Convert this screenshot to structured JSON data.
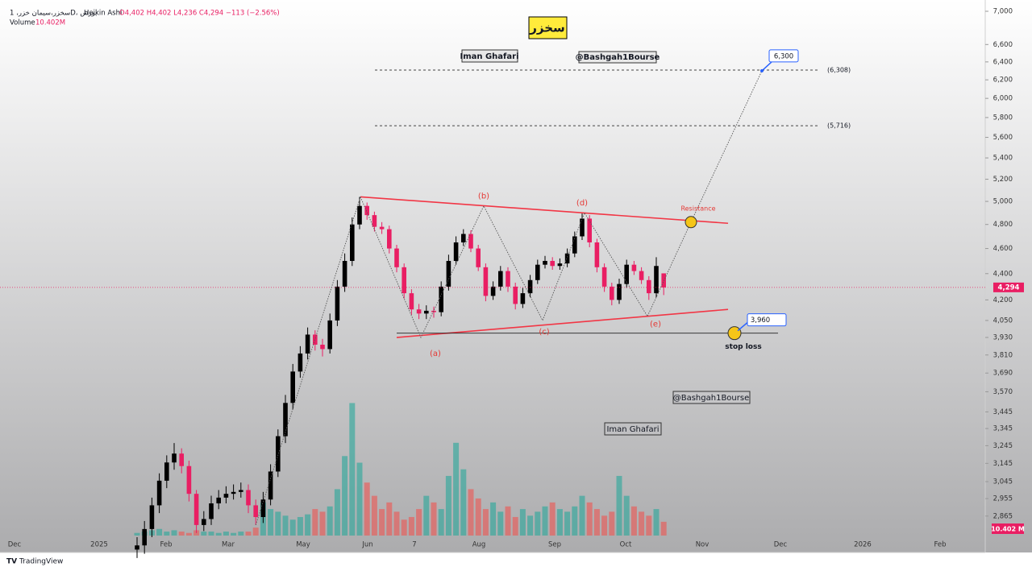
{
  "header": {
    "symbol": "سخزر،سیمان خزر، 1D، بورس",
    "chart_style": "Heikin Ashi",
    "ohlc": "O4,402 H4,402 L4,236 C4,294 −113 (−2.56%)",
    "volume_label": "Volume",
    "volume_value": "10.402M",
    "badge": "سخزر",
    "watermarks": [
      "Iman Ghafari",
      "@Bashgah1Bourse",
      "@Bashgah1Bourse",
      "Iman Ghafari"
    ],
    "brand": "TradingView"
  },
  "chart_data": {
    "type": "candlestick",
    "log_scale": true,
    "up_color": "#000000",
    "down_color": "#e91e63",
    "volume_up_color": "#26a69a",
    "volume_down_color": "#ef5350",
    "ylim": [
      2690,
      7141
    ],
    "yticks": [
      {
        "value": 7000,
        "label": "7,000"
      },
      {
        "value": 6600,
        "label": "6,600"
      },
      {
        "value": 6400,
        "label": "6,400"
      },
      {
        "value": 6200,
        "label": "6,200"
      },
      {
        "value": 6000,
        "label": "6,000"
      },
      {
        "value": 5800,
        "label": "5,800"
      },
      {
        "value": 5600,
        "label": "5,600"
      },
      {
        "value": 5400,
        "label": "5,400"
      },
      {
        "value": 5200,
        "label": "5,200"
      },
      {
        "value": 5000,
        "label": "5,000"
      },
      {
        "value": 4800,
        "label": "4,800"
      },
      {
        "value": 4600,
        "label": "4,600"
      },
      {
        "value": 4400,
        "label": "4,400"
      },
      {
        "value": 4200,
        "label": "4,200"
      },
      {
        "value": 4050,
        "label": "4,050"
      },
      {
        "value": 3930,
        "label": "3,930"
      },
      {
        "value": 3810,
        "label": "3,810"
      },
      {
        "value": 3690,
        "label": "3,690"
      },
      {
        "value": 3570,
        "label": "3,570"
      },
      {
        "value": 3445,
        "label": "3,445"
      },
      {
        "value": 3345,
        "label": "3,345"
      },
      {
        "value": 3245,
        "label": "3,245"
      },
      {
        "value": 3145,
        "label": "3,145"
      },
      {
        "value": 3045,
        "label": "3,045"
      },
      {
        "value": 2955,
        "label": "2,955"
      },
      {
        "value": 2865,
        "label": "2,865"
      }
    ],
    "x_labels": [
      "Dec",
      "2025",
      "Feb",
      "Mar",
      "May",
      "Jun",
      "7",
      "Aug",
      "Sep",
      "Oct",
      "Nov",
      "Dec",
      "2026",
      "Feb"
    ],
    "open": [
      2700,
      2720,
      2800,
      2920,
      3050,
      3150,
      3200,
      3130,
      2980,
      2820,
      2850,
      2930,
      2960,
      2980,
      2990,
      3000,
      2920,
      2860,
      2950,
      3100,
      3300,
      3500,
      3700,
      3820,
      3950,
      3880,
      3850,
      4050,
      4300,
      4500,
      4800,
      4960,
      4880,
      4780,
      4760,
      4600,
      4450,
      4250,
      4130,
      4100,
      4120,
      4110,
      4300,
      4500,
      4650,
      4720,
      4600,
      4450,
      4230,
      4300,
      4420,
      4300,
      4170,
      4250,
      4350,
      4470,
      4500,
      4460,
      4480,
      4560,
      4700,
      4850,
      4650,
      4450,
      4300,
      4200,
      4320,
      4470,
      4420,
      4350,
      4250,
      4402
    ],
    "high": [
      2760,
      2840,
      2960,
      3090,
      3190,
      3260,
      3230,
      3160,
      3000,
      2890,
      2970,
      3000,
      3020,
      3030,
      3040,
      3030,
      2950,
      2990,
      3140,
      3340,
      3550,
      3750,
      3870,
      4000,
      3980,
      3920,
      4100,
      4350,
      4560,
      4860,
      5040,
      4990,
      4910,
      4820,
      4790,
      4630,
      4480,
      4280,
      4170,
      4160,
      4150,
      4340,
      4550,
      4700,
      4760,
      4750,
      4630,
      4480,
      4340,
      4460,
      4450,
      4330,
      4290,
      4390,
      4510,
      4540,
      4530,
      4520,
      4600,
      4740,
      4900,
      4880,
      4680,
      4480,
      4330,
      4360,
      4510,
      4500,
      4450,
      4380,
      4530,
      4402
    ],
    "low": [
      2660,
      2680,
      2760,
      2880,
      3010,
      3110,
      3090,
      2940,
      2780,
      2790,
      2820,
      2900,
      2930,
      2950,
      2960,
      2880,
      2820,
      2830,
      2920,
      3070,
      3260,
      3460,
      3660,
      3780,
      3840,
      3800,
      3820,
      4010,
      4260,
      4460,
      4760,
      4840,
      4740,
      4720,
      4560,
      4410,
      4210,
      4090,
      4060,
      4060,
      4070,
      4080,
      4270,
      4470,
      4620,
      4570,
      4420,
      4190,
      4200,
      4270,
      4260,
      4130,
      4140,
      4220,
      4320,
      4440,
      4430,
      4430,
      4450,
      4530,
      4670,
      4610,
      4410,
      4260,
      4160,
      4170,
      4290,
      4390,
      4320,
      4200,
      4220,
      4236
    ],
    "close": [
      2720,
      2800,
      2920,
      3050,
      3150,
      3200,
      3130,
      2980,
      2820,
      2850,
      2930,
      2960,
      2980,
      2990,
      3000,
      2920,
      2860,
      2950,
      3100,
      3300,
      3500,
      3700,
      3820,
      3950,
      3880,
      3850,
      4050,
      4300,
      4500,
      4800,
      4960,
      4880,
      4780,
      4760,
      4600,
      4450,
      4250,
      4130,
      4100,
      4120,
      4110,
      4300,
      4500,
      4650,
      4720,
      4600,
      4450,
      4230,
      4300,
      4420,
      4300,
      4170,
      4250,
      4350,
      4470,
      4500,
      4460,
      4480,
      4560,
      4700,
      4850,
      4650,
      4450,
      4300,
      4200,
      4320,
      4470,
      4420,
      4350,
      4250,
      4460,
      4294
    ],
    "volume": [
      2,
      3,
      4,
      5,
      3,
      4,
      3,
      2,
      4,
      3,
      3,
      2,
      3,
      2,
      3,
      3,
      6,
      25,
      20,
      18,
      15,
      12,
      14,
      16,
      20,
      18,
      22,
      35,
      60,
      100,
      55,
      40,
      30,
      20,
      25,
      18,
      12,
      14,
      20,
      30,
      25,
      20,
      45,
      70,
      50,
      35,
      28,
      20,
      25,
      18,
      22,
      14,
      20,
      15,
      18,
      22,
      25,
      20,
      18,
      22,
      30,
      25,
      20,
      15,
      18,
      45,
      30,
      22,
      18,
      15,
      20,
      10.402
    ],
    "vlim": [
      0,
      110
    ],
    "volume_value_label": "10.402 M",
    "last_price": {
      "value": 4294,
      "label": "4,294"
    },
    "levels": [
      {
        "value": 6308,
        "label": "(6,308)"
      },
      {
        "value": 5716,
        "label": "(5,716)"
      }
    ],
    "resistance": {
      "label": "Resistance",
      "start": 5040,
      "end": 4810,
      "touch": 4820
    },
    "support": {
      "start": 3930,
      "end": 4130
    },
    "waves": [
      {
        "label": "(a)",
        "value": 3930
      },
      {
        "label": "(b)",
        "value": 4960
      },
      {
        "label": "(c)",
        "value": 4050
      },
      {
        "label": "(d)",
        "value": 4900
      },
      {
        "label": "(e)",
        "value": 4080
      }
    ],
    "target": {
      "value": 6300,
      "label": "6,300"
    },
    "stop_loss": {
      "label": "stop loss",
      "value": 3960,
      "value_label": "3,960"
    }
  }
}
